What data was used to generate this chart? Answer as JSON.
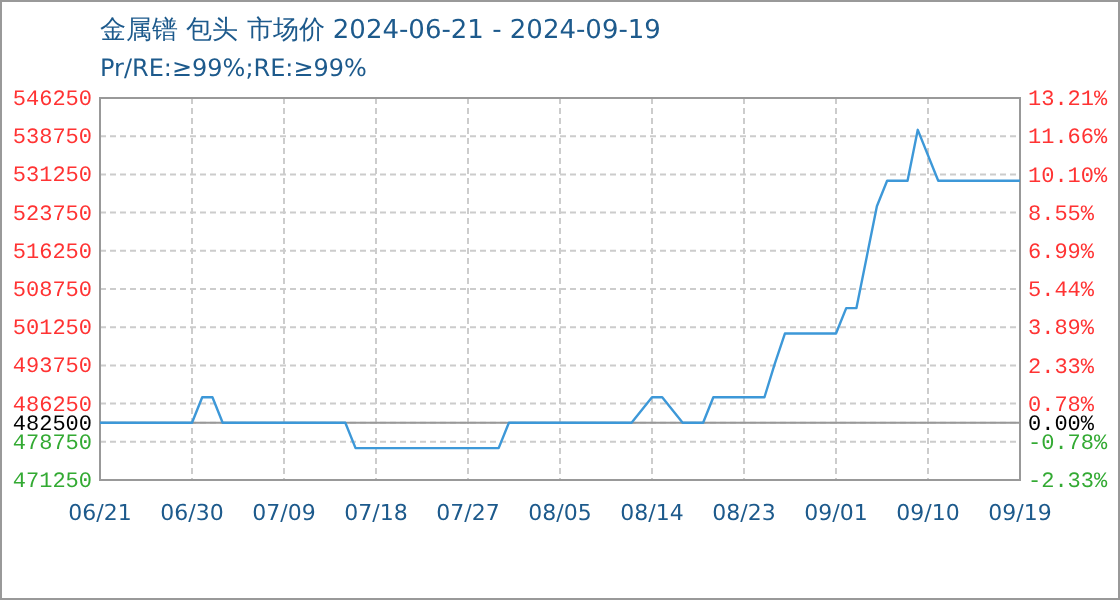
{
  "chart_data": {
    "type": "line",
    "title": "金属镨 包头 市场价 2024-06-21 - 2024-09-19",
    "subtitle": "Pr/RE:≥99%;RE:≥99%",
    "x": [
      "2024-06-21",
      "2024-06-30",
      "2024-07-01",
      "2024-07-02",
      "2024-07-03",
      "2024-07-15",
      "2024-07-16",
      "2024-07-30",
      "2024-07-31",
      "2024-08-12",
      "2024-08-14",
      "2024-08-15",
      "2024-08-17",
      "2024-08-19",
      "2024-08-20",
      "2024-08-25",
      "2024-08-26",
      "2024-08-27",
      "2024-09-01",
      "2024-09-02",
      "2024-09-03",
      "2024-09-04",
      "2024-09-05",
      "2024-09-06",
      "2024-09-08",
      "2024-09-09",
      "2024-09-11",
      "2024-09-19"
    ],
    "series": [
      {
        "color": "#3d98d8",
        "values": [
          482500,
          482500,
          487500,
          487500,
          482500,
          482500,
          477500,
          477500,
          482500,
          482500,
          487500,
          487500,
          482500,
          482500,
          487500,
          487500,
          494000,
          500000,
          500000,
          505000,
          505000,
          515000,
          525000,
          530000,
          530000,
          540000,
          530000,
          530000
        ]
      }
    ],
    "xlim": [
      "2024-06-21",
      "2024-09-19"
    ],
    "xticks": [
      {
        "value": "2024-06-21",
        "label": "06/21"
      },
      {
        "value": "2024-06-30",
        "label": "06/30"
      },
      {
        "value": "2024-07-09",
        "label": "07/09"
      },
      {
        "value": "2024-07-18",
        "label": "07/18"
      },
      {
        "value": "2024-07-27",
        "label": "07/27"
      },
      {
        "value": "2024-08-05",
        "label": "08/05"
      },
      {
        "value": "2024-08-14",
        "label": "08/14"
      },
      {
        "value": "2024-08-23",
        "label": "08/23"
      },
      {
        "value": "2024-09-01",
        "label": "09/01"
      },
      {
        "value": "2024-09-10",
        "label": "09/10"
      },
      {
        "value": "2024-09-19",
        "label": "09/19"
      }
    ],
    "ylim": [
      471250,
      546250
    ],
    "yticks": [
      471250,
      478750,
      482500,
      486250,
      493750,
      501250,
      508750,
      516250,
      523750,
      531250,
      538750,
      546250
    ],
    "y2lim": [
      -2.33,
      13.21
    ],
    "y2ticks": [
      {
        "value": -2.33,
        "label": "-2.33%"
      },
      {
        "value": -0.78,
        "label": "-0.78%"
      },
      {
        "value": 0,
        "label": "0.00%"
      },
      {
        "value": 0.78,
        "label": "0.78%"
      },
      {
        "value": 2.33,
        "label": "2.33%"
      },
      {
        "value": 3.89,
        "label": "3.89%"
      },
      {
        "value": 5.44,
        "label": "5.44%"
      },
      {
        "value": 6.99,
        "label": "6.99%"
      },
      {
        "value": 8.55,
        "label": "8.55%"
      },
      {
        "value": 10.1,
        "label": "10.10%"
      },
      {
        "value": 11.66,
        "label": "11.66%"
      },
      {
        "value": 13.21,
        "label": "13.21%"
      }
    ],
    "ref_lines": [
      {
        "axis": "y",
        "value": 482500,
        "color": "#999999"
      }
    ],
    "grid": true,
    "marker": "none",
    "line_style": "solid"
  }
}
